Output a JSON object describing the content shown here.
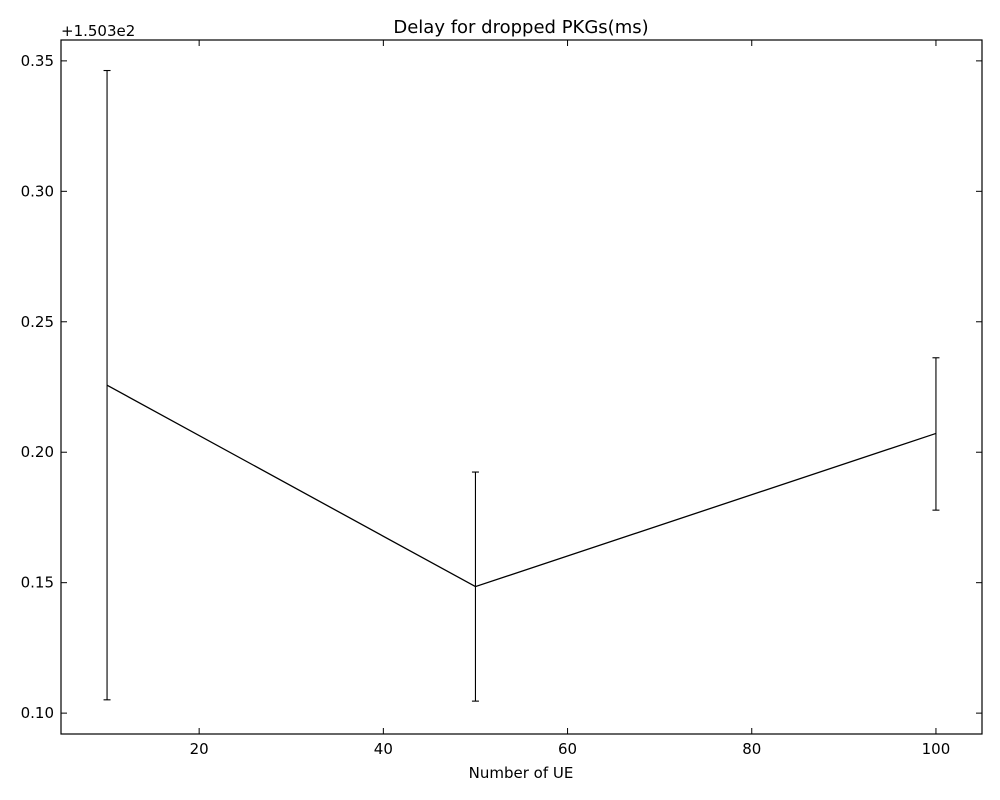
{
  "chart_data": {
    "type": "line",
    "title": "Delay for dropped PKGs(ms)",
    "xlabel": "Number of UE",
    "ylabel": "",
    "offset_label": "+1.503e2",
    "xlim": [
      5,
      105
    ],
    "ylim": [
      0.092,
      0.358
    ],
    "x_ticks": [
      20,
      40,
      60,
      80,
      100
    ],
    "x_tick_labels": [
      "20",
      "40",
      "60",
      "80",
      "100"
    ],
    "y_ticks": [
      0.1,
      0.15,
      0.2,
      0.25,
      0.3,
      0.35
    ],
    "y_tick_labels": [
      "0.10",
      "0.15",
      "0.20",
      "0.25",
      "0.30",
      "0.35"
    ],
    "grid": false,
    "series": [
      {
        "x": [
          10,
          50,
          100
        ],
        "values": [
          0.2257,
          0.1485,
          0.2072
        ],
        "err_low": [
          0.1051,
          0.1046,
          0.1778
        ],
        "err_high": [
          0.3463,
          0.1924,
          0.2362
        ],
        "color": "#000000"
      }
    ]
  }
}
